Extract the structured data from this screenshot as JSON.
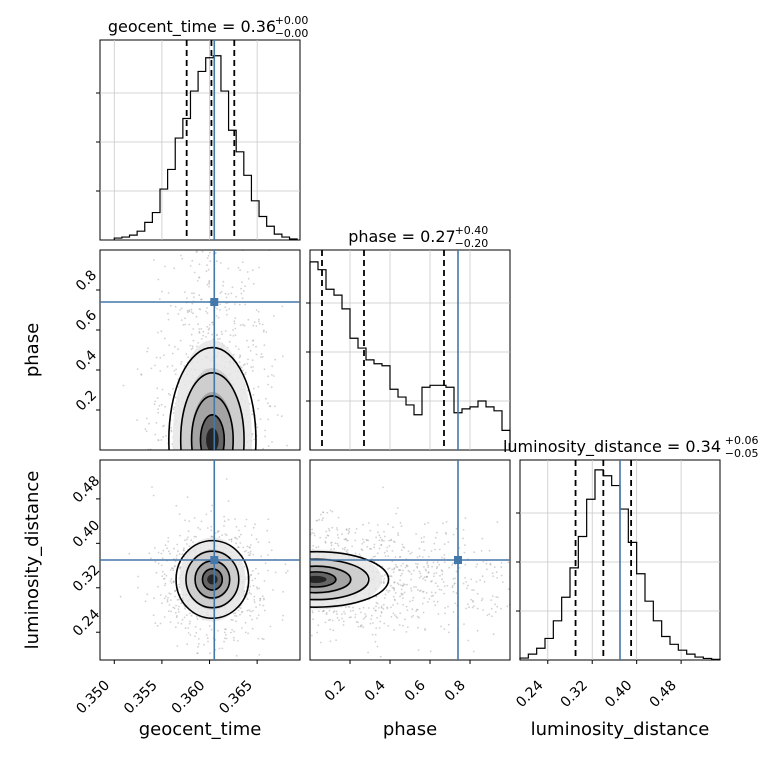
{
  "chart_data": [
    {
      "type": "histogram",
      "parameter": "geocent_time",
      "title": "geocent_time = 0.36",
      "title_sup": "+0.00",
      "title_sub": "−0.00",
      "xlim": [
        0.3485,
        0.3695
      ],
      "quantiles": [
        0.3576,
        0.3602,
        0.3626
      ],
      "truth": 0.3605,
      "bins": [
        0.35,
        0.3508,
        0.3516,
        0.3524,
        0.3532,
        0.354,
        0.3548,
        0.3556,
        0.3564,
        0.3572,
        0.358,
        0.3588,
        0.3596,
        0.3604,
        0.3612,
        0.362,
        0.3628,
        0.3636,
        0.3644,
        0.3652,
        0.366,
        0.3668,
        0.3676,
        0.3684,
        0.3692
      ],
      "counts": [
        0.01,
        0.015,
        0.025,
        0.045,
        0.09,
        0.14,
        0.26,
        0.36,
        0.52,
        0.62,
        0.76,
        0.86,
        0.93,
        0.94,
        0.76,
        0.56,
        0.45,
        0.33,
        0.2,
        0.12,
        0.07,
        0.03,
        0.015,
        0.005
      ],
      "xticks": [
        0.35,
        0.355,
        0.36,
        0.365
      ],
      "xtick_labels": [
        "0.350",
        "0.355",
        "0.360",
        "0.365"
      ],
      "xlabel": "geocent_time"
    },
    {
      "type": "histogram",
      "parameter": "phase",
      "title": "phase = 0.27",
      "title_sup": "+0.40",
      "title_sub": "−0.20",
      "xlim": [
        0.0,
        1.0
      ],
      "quantiles": [
        0.06,
        0.27,
        0.67
      ],
      "truth": 0.74,
      "bins": [
        0.0,
        0.04,
        0.08,
        0.12,
        0.16,
        0.2,
        0.24,
        0.28,
        0.32,
        0.36,
        0.4,
        0.44,
        0.48,
        0.52,
        0.56,
        0.6,
        0.64,
        0.68,
        0.72,
        0.76,
        0.8,
        0.84,
        0.88,
        0.92,
        0.96,
        1.0
      ],
      "counts": [
        0.96,
        0.92,
        0.82,
        0.79,
        0.72,
        0.57,
        0.52,
        0.46,
        0.44,
        0.43,
        0.31,
        0.27,
        0.23,
        0.18,
        0.32,
        0.33,
        0.33,
        0.32,
        0.19,
        0.21,
        0.22,
        0.25,
        0.22,
        0.2,
        0.1
      ],
      "xticks": [
        0.2,
        0.4,
        0.6,
        0.8
      ],
      "xtick_labels": [
        "0.2",
        "0.4",
        "0.6",
        "0.8"
      ],
      "xlabel": "phase"
    },
    {
      "type": "histogram",
      "parameter": "luminosity_distance",
      "title": "luminosity_distance = 0.34",
      "title_sup": "+0.06",
      "title_sub": "−0.05",
      "xlim": [
        0.19,
        0.55
      ],
      "quantiles": [
        0.29,
        0.34,
        0.39
      ],
      "truth": 0.37,
      "bins": [
        0.19,
        0.205,
        0.22,
        0.235,
        0.25,
        0.265,
        0.28,
        0.295,
        0.31,
        0.325,
        0.34,
        0.355,
        0.37,
        0.385,
        0.4,
        0.415,
        0.43,
        0.445,
        0.46,
        0.475,
        0.49,
        0.505,
        0.52,
        0.535,
        0.55
      ],
      "counts": [
        0.01,
        0.03,
        0.06,
        0.11,
        0.2,
        0.32,
        0.47,
        0.63,
        0.82,
        0.97,
        0.94,
        0.89,
        0.77,
        0.6,
        0.44,
        0.3,
        0.2,
        0.12,
        0.08,
        0.05,
        0.03,
        0.015,
        0.008,
        0.003
      ],
      "xticks": [
        0.24,
        0.32,
        0.4,
        0.48
      ],
      "xtick_labels": [
        "0.24",
        "0.32",
        "0.40",
        "0.48"
      ],
      "xlabel": "luminosity_distance"
    },
    {
      "type": "scatter",
      "pair": [
        "geocent_time",
        "phase"
      ],
      "ylabel": "phase",
      "xlim": [
        0.3485,
        0.3695
      ],
      "ylim": [
        0.0,
        1.0
      ],
      "yticks": [
        0.2,
        0.4,
        0.6,
        0.8
      ],
      "ytick_labels": [
        "0.2",
        "0.4",
        "0.6",
        "0.8"
      ],
      "truth": [
        0.3605,
        0.74
      ]
    },
    {
      "type": "scatter",
      "pair": [
        "geocent_time",
        "luminosity_distance"
      ],
      "ylabel": "luminosity_distance",
      "xlim": [
        0.3485,
        0.3695
      ],
      "ylim": [
        0.19,
        0.55
      ],
      "yticks": [
        0.24,
        0.32,
        0.4,
        0.48
      ],
      "ytick_labels": [
        "0.24",
        "0.32",
        "0.40",
        "0.48"
      ],
      "truth": [
        0.3605,
        0.37
      ]
    },
    {
      "type": "scatter",
      "pair": [
        "phase",
        "luminosity_distance"
      ],
      "xlim": [
        0.0,
        1.0
      ],
      "ylim": [
        0.19,
        0.55
      ],
      "truth": [
        0.74,
        0.37
      ]
    }
  ],
  "colors": {
    "truth": "#4477aa",
    "histogram": "#000000",
    "quantile": "#000000",
    "grid": "#c8c8c8",
    "points": "#9a9a9a"
  }
}
